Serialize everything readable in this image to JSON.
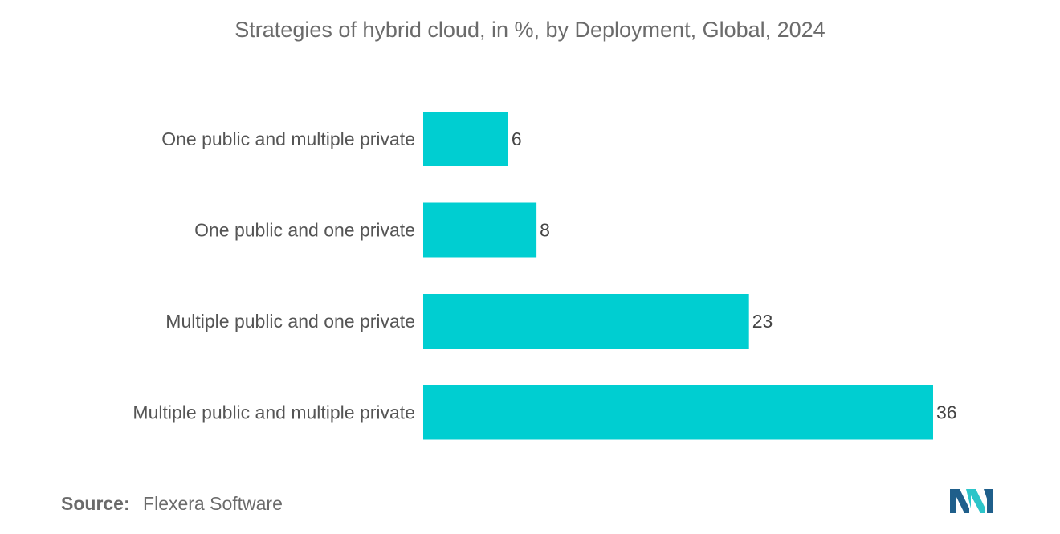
{
  "title": "Strategies of hybrid cloud, in %, by Deployment, Global, 2024",
  "source": {
    "label": "Source:",
    "value": "Flexera Software"
  },
  "colors": {
    "bar": "#00CED1",
    "logo_dark": "#1f5f8b",
    "logo_light": "#2cc5c9"
  },
  "chart_data": {
    "type": "bar",
    "orientation": "horizontal",
    "title": "Strategies of hybrid cloud, in %, by Deployment, Global, 2024",
    "categories": [
      "One public and multiple private",
      "One public and one private",
      "Multiple public and one private",
      "Multiple public and multiple private"
    ],
    "values": [
      6,
      8,
      23,
      36
    ],
    "xlabel": "",
    "ylabel": "",
    "xlim": [
      0,
      36
    ],
    "grid": false,
    "legend": "none"
  }
}
